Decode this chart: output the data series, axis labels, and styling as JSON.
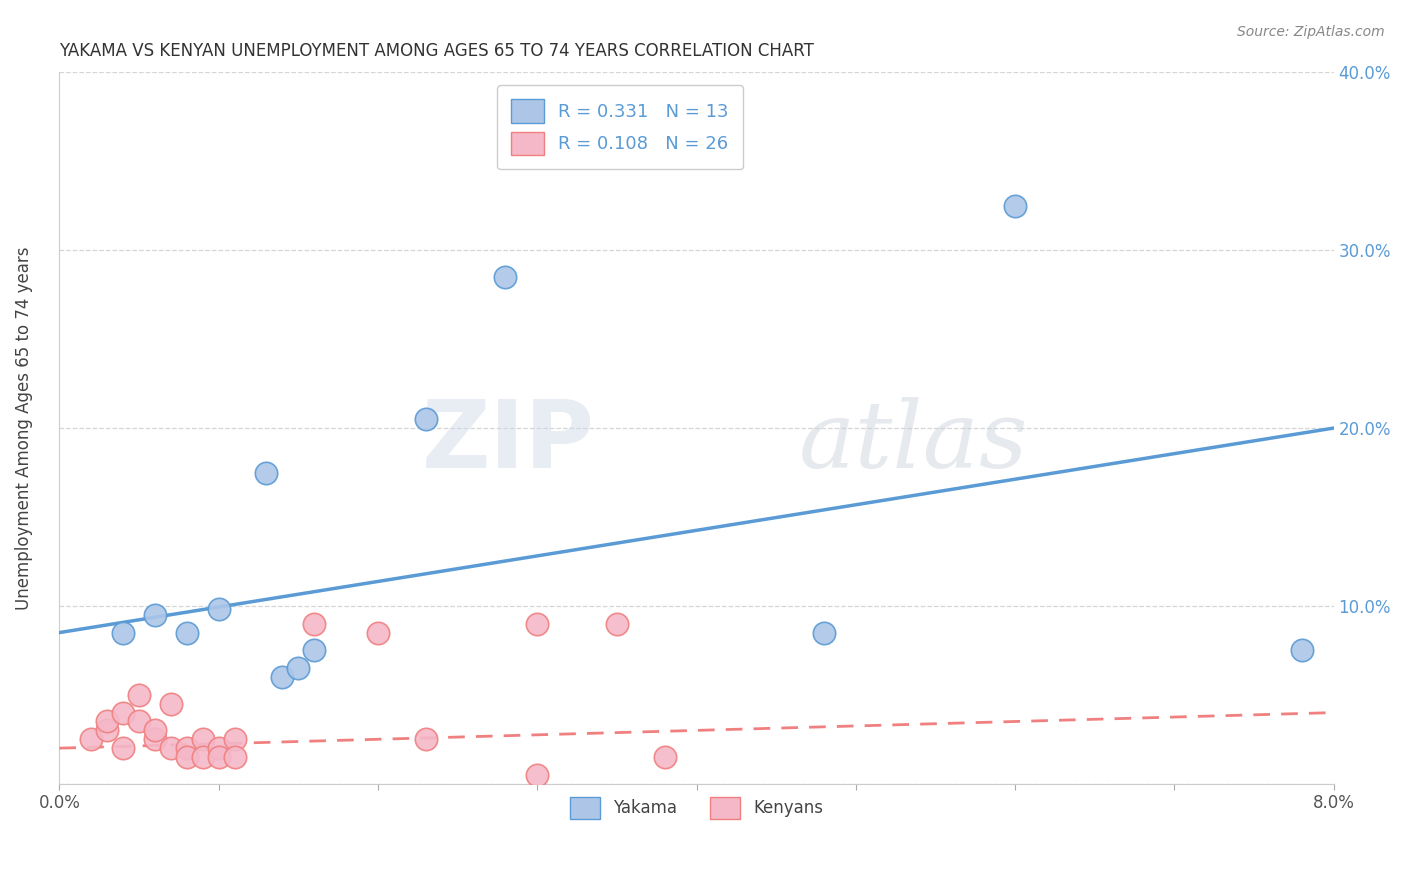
{
  "title": "YAKAMA VS KENYAN UNEMPLOYMENT AMONG AGES 65 TO 74 YEARS CORRELATION CHART",
  "source": "Source: ZipAtlas.com",
  "ylabel": "Unemployment Among Ages 65 to 74 years",
  "xlim": [
    0.0,
    0.08
  ],
  "ylim": [
    0.0,
    0.4
  ],
  "xticks": [
    0.0,
    0.01,
    0.02,
    0.03,
    0.04,
    0.05,
    0.06,
    0.07,
    0.08
  ],
  "xtick_labels_show": [
    "0.0%",
    "",
    "",
    "",
    "",
    "",
    "",
    "",
    "8.0%"
  ],
  "yticks": [
    0.0,
    0.1,
    0.2,
    0.3,
    0.4
  ],
  "ytick_labels_right": [
    "",
    "10.0%",
    "20.0%",
    "30.0%",
    "40.0%"
  ],
  "legend_entries": [
    {
      "label": "R = 0.331   N = 13",
      "color": "#a8c4e0"
    },
    {
      "label": "R = 0.108   N = 26",
      "color": "#f4a8b8"
    }
  ],
  "legend_bottom": [
    {
      "label": "Yakama",
      "color": "#a8c4e0"
    },
    {
      "label": "Kenyans",
      "color": "#f4a8b8"
    }
  ],
  "yakama_points": [
    [
      0.004,
      0.085
    ],
    [
      0.006,
      0.095
    ],
    [
      0.008,
      0.085
    ],
    [
      0.01,
      0.098
    ],
    [
      0.013,
      0.175
    ],
    [
      0.014,
      0.06
    ],
    [
      0.015,
      0.065
    ],
    [
      0.016,
      0.075
    ],
    [
      0.023,
      0.205
    ],
    [
      0.028,
      0.285
    ],
    [
      0.048,
      0.085
    ],
    [
      0.06,
      0.325
    ],
    [
      0.078,
      0.075
    ]
  ],
  "kenyan_points": [
    [
      0.002,
      0.025
    ],
    [
      0.003,
      0.03
    ],
    [
      0.003,
      0.035
    ],
    [
      0.004,
      0.04
    ],
    [
      0.004,
      0.02
    ],
    [
      0.005,
      0.05
    ],
    [
      0.005,
      0.035
    ],
    [
      0.006,
      0.025
    ],
    [
      0.006,
      0.03
    ],
    [
      0.007,
      0.02
    ],
    [
      0.007,
      0.045
    ],
    [
      0.008,
      0.02
    ],
    [
      0.008,
      0.015
    ],
    [
      0.009,
      0.025
    ],
    [
      0.009,
      0.015
    ],
    [
      0.01,
      0.02
    ],
    [
      0.01,
      0.015
    ],
    [
      0.011,
      0.025
    ],
    [
      0.011,
      0.015
    ],
    [
      0.016,
      0.09
    ],
    [
      0.02,
      0.085
    ],
    [
      0.023,
      0.025
    ],
    [
      0.03,
      0.09
    ],
    [
      0.035,
      0.09
    ],
    [
      0.038,
      0.015
    ],
    [
      0.03,
      0.005
    ]
  ],
  "yakama_line": [
    [
      0.0,
      0.085
    ],
    [
      0.08,
      0.2
    ]
  ],
  "kenyan_line": [
    [
      0.0,
      0.02
    ],
    [
      0.08,
      0.04
    ]
  ],
  "yakama_color": "#5b9bd5",
  "kenyan_color": "#f08080",
  "yakama_scatter_color": "#adc6e8",
  "kenyan_scatter_color": "#f4b8c8",
  "watermark_zip": "ZIP",
  "watermark_atlas": "atlas",
  "background_color": "#ffffff",
  "grid_color": "#cccccc",
  "title_color": "#333333",
  "label_color_blue": "#5b9bd5",
  "label_color_dark": "#444444"
}
